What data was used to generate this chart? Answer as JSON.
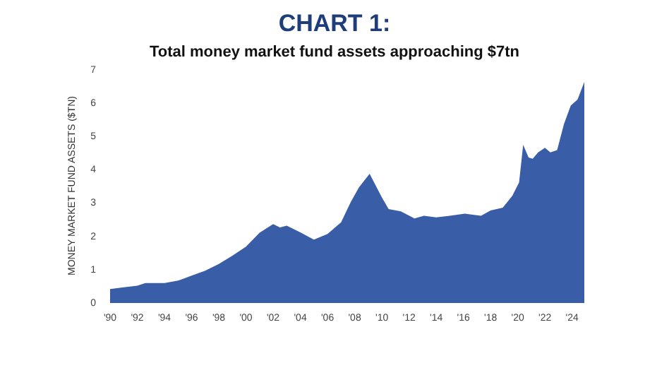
{
  "chart_data": {
    "type": "area",
    "title": "CHART 1:",
    "subtitle": "Total money market fund assets approaching $7tn",
    "ylabel": "MONEY MARKET FUND ASSETS ($TN)",
    "x": [
      1990,
      1991,
      1992,
      1992.6,
      1993,
      1994,
      1995,
      1996,
      1997,
      1998,
      1999,
      2000,
      2001,
      2002,
      2002.5,
      2003,
      2004,
      2005,
      2006,
      2007,
      2007.7,
      2008.3,
      2008.6,
      2009.1,
      2010,
      2010.5,
      2011.4,
      2012.4,
      2013.1,
      2014,
      2015,
      2016.1,
      2017.3,
      2018,
      2018.9,
      2019.6,
      2020.1,
      2020.4,
      2020.8,
      2021.1,
      2021.5,
      2022,
      2022.4,
      2022.9,
      2023.4,
      2023.9,
      2024.4,
      2024.9
    ],
    "series": [
      {
        "color": "#3a5da8",
        "values": [
          0.4,
          0.45,
          0.5,
          0.58,
          0.58,
          0.58,
          0.65,
          0.8,
          0.95,
          1.15,
          1.4,
          1.67,
          2.09,
          2.35,
          2.25,
          2.3,
          2.1,
          1.88,
          2.05,
          2.4,
          3.0,
          3.44,
          3.6,
          3.86,
          3.15,
          2.8,
          2.73,
          2.52,
          2.6,
          2.55,
          2.6,
          2.66,
          2.6,
          2.76,
          2.84,
          3.2,
          3.6,
          4.73,
          4.35,
          4.31,
          4.5,
          4.64,
          4.5,
          4.57,
          5.35,
          5.91,
          6.09,
          6.62
        ]
      }
    ],
    "xlim": [
      1990,
      2024.9
    ],
    "xticks": [
      {
        "value": 1990,
        "label": "'90"
      },
      {
        "value": 1992,
        "label": "'92"
      },
      {
        "value": 1994,
        "label": "'94"
      },
      {
        "value": 1996,
        "label": "'96"
      },
      {
        "value": 1998,
        "label": "'98"
      },
      {
        "value": 2000,
        "label": "'00"
      },
      {
        "value": 2002,
        "label": "'02"
      },
      {
        "value": 2004,
        "label": "'04"
      },
      {
        "value": 2006,
        "label": "'06"
      },
      {
        "value": 2008,
        "label": "'08"
      },
      {
        "value": 2010,
        "label": "'10"
      },
      {
        "value": 2012,
        "label": "'12"
      },
      {
        "value": 2014,
        "label": "'14"
      },
      {
        "value": 2016,
        "label": "'16"
      },
      {
        "value": 2018,
        "label": "'18"
      },
      {
        "value": 2020,
        "label": "'20"
      },
      {
        "value": 2022,
        "label": "'22"
      },
      {
        "value": 2024,
        "label": "'24"
      }
    ],
    "ylim": [
      0,
      7
    ],
    "yticks": [
      0,
      1,
      2,
      3,
      4,
      5,
      6,
      7
    ],
    "grid": false
  }
}
